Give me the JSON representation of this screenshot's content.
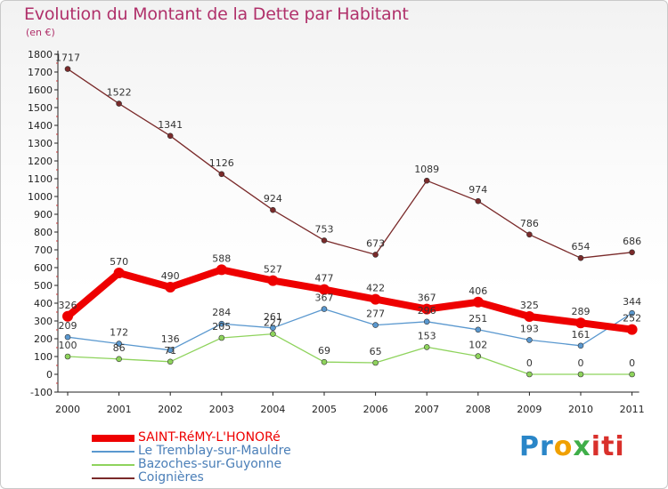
{
  "chart_data": {
    "type": "line",
    "title": "Evolution du Montant de la Dette par Habitant",
    "subtitle": "(en €)",
    "categories": [
      "2000",
      "2001",
      "2002",
      "2003",
      "2004",
      "2005",
      "2006",
      "2007",
      "2008",
      "2009",
      "2010",
      "2011"
    ],
    "ylim": [
      -100,
      1800
    ],
    "yticks": [
      -100,
      0,
      100,
      200,
      300,
      400,
      500,
      600,
      700,
      800,
      900,
      1000,
      1100,
      1200,
      1300,
      1400,
      1500,
      1600,
      1700,
      1800
    ],
    "grid": false,
    "legend_position": "bottom-left",
    "series": [
      {
        "name": "Coignières",
        "color": "#7a2a2a",
        "values": [
          1717,
          1522,
          1341,
          1126,
          924,
          753,
          673,
          1089,
          974,
          786,
          654,
          686
        ]
      },
      {
        "name": "Bazoches-sur-Guyonne",
        "color": "#8ed35c",
        "values": [
          100,
          86,
          71,
          205,
          227,
          69,
          65,
          153,
          102,
          0,
          0,
          0
        ]
      },
      {
        "name": "Le Tremblay-sur-Mauldre",
        "color": "#5a98cf",
        "values": [
          209,
          172,
          136,
          284,
          261,
          367,
          277,
          296,
          251,
          193,
          161,
          344
        ]
      },
      {
        "name": "SAINT-RéMY-L'HONORé",
        "color": "#ee0000",
        "values": [
          326,
          570,
          490,
          588,
          527,
          477,
          422,
          367,
          406,
          325,
          289,
          252
        ]
      }
    ],
    "legend_order": [
      "SAINT-RéMY-L'HONORé",
      "Le Tremblay-sur-Mauldre",
      "Bazoches-sur-Guyonne",
      "Coignières"
    ]
  },
  "brand": {
    "p1": "Pr",
    "p2": "o",
    "p3": "x",
    "p4": "iti"
  }
}
